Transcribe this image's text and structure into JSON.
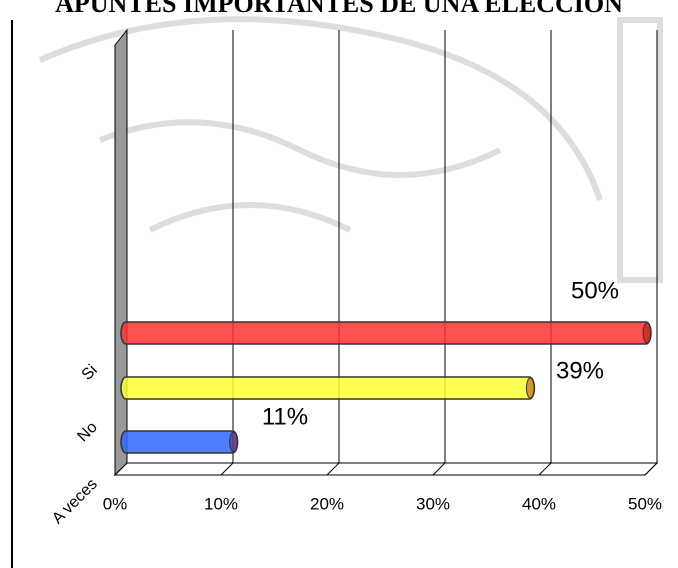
{
  "chart_data": {
    "type": "bar",
    "title": "APUNTES IMPORTANTES DE UNA ELECCION",
    "categories": [
      "Si",
      "No",
      "A veces"
    ],
    "values": [
      50,
      39,
      11
    ],
    "value_labels": [
      "50%",
      "39%",
      "11%"
    ],
    "colors": [
      "#ff3333",
      "#ffff33",
      "#3366ff"
    ],
    "xlim": [
      0,
      50
    ],
    "xticks": [
      {
        "value": 0,
        "label": "0%"
      },
      {
        "value": 10,
        "label": "10%"
      },
      {
        "value": 20,
        "label": "20%"
      },
      {
        "value": 30,
        "label": "30%"
      },
      {
        "value": 40,
        "label": "40%"
      },
      {
        "value": 50,
        "label": "50%"
      }
    ],
    "grid": true
  }
}
